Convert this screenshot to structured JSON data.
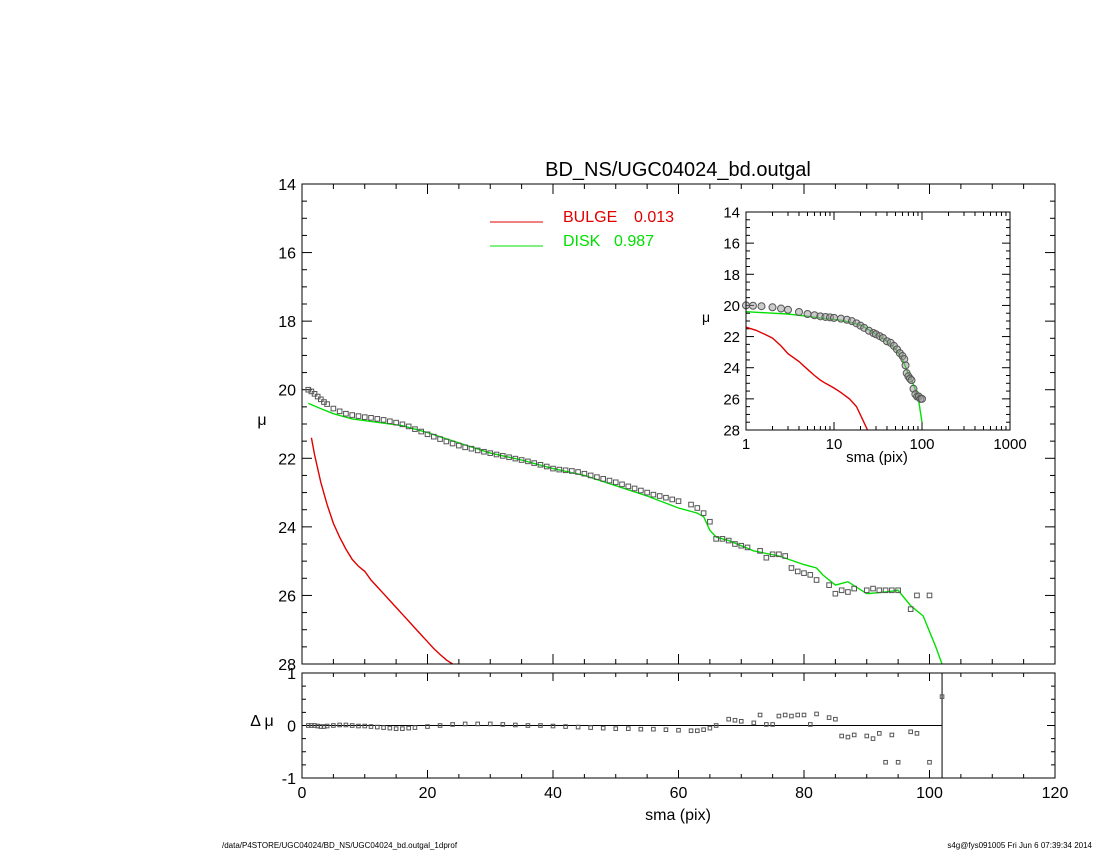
{
  "page": {
    "footer_left": "/data/P4STORE/UGC04024/BD_NS/UGC04024_bd.outgal_1dprof",
    "footer_right": "s4g@fys091005  Fri Jun  6 07:39:34 2014"
  },
  "colors": {
    "bulge": "#e00000",
    "disk": "#00e000",
    "data": "#555555",
    "axis": "#000000"
  },
  "chart_data": [
    {
      "id": "main-profile",
      "type": "line",
      "title": "BD_NS/UGC04024_bd.outgal",
      "xlabel": "",
      "ylabel": "μ",
      "xlim": [
        0,
        120
      ],
      "ylim": [
        28,
        14
      ],
      "y_reversed": true,
      "xticks": [
        0,
        20,
        40,
        60,
        80,
        100,
        120
      ],
      "yticks": [
        14,
        16,
        18,
        20,
        22,
        24,
        26,
        28
      ],
      "legend": {
        "placement": "top-center",
        "entries": [
          {
            "label": "BULGE",
            "value": "0.013",
            "color": "#e00000"
          },
          {
            "label": "DISK",
            "value": "0.987",
            "color": "#00e000"
          }
        ]
      },
      "series": [
        {
          "name": "BULGE",
          "color": "#e00000",
          "kind": "line",
          "x": [
            1.5,
            2,
            3,
            4,
            5,
            6,
            7,
            8,
            9,
            10,
            11,
            12,
            13,
            14,
            15,
            16,
            17,
            18,
            19,
            20,
            21,
            22,
            23,
            24
          ],
          "y": [
            21.4,
            21.9,
            22.7,
            23.35,
            23.9,
            24.3,
            24.65,
            24.95,
            25.15,
            25.3,
            25.55,
            25.75,
            25.95,
            26.15,
            26.35,
            26.55,
            26.75,
            26.95,
            27.15,
            27.35,
            27.55,
            27.72,
            27.88,
            28.0
          ]
        },
        {
          "name": "DISK",
          "color": "#00e000",
          "kind": "line",
          "x": [
            1,
            3,
            5,
            8,
            12,
            16,
            20,
            25,
            30,
            35,
            40,
            45,
            50,
            55,
            60,
            63,
            64,
            65,
            66,
            68,
            72,
            76,
            80,
            82,
            83,
            85,
            87,
            90,
            93,
            95,
            97,
            99,
            101,
            102
          ],
          "y": [
            20.4,
            20.55,
            20.7,
            20.85,
            20.95,
            21.05,
            21.25,
            21.55,
            21.85,
            22.05,
            22.3,
            22.5,
            22.8,
            23.1,
            23.45,
            23.6,
            23.7,
            24.1,
            24.3,
            24.4,
            24.7,
            24.85,
            25.1,
            25.2,
            25.4,
            25.7,
            25.6,
            25.95,
            25.9,
            25.85,
            26.3,
            26.6,
            27.5,
            28.0
          ]
        },
        {
          "name": "data",
          "color": "#555555",
          "kind": "markers",
          "x": [
            1,
            1.5,
            2,
            2.5,
            3,
            3.5,
            4,
            5,
            6,
            7,
            8,
            9,
            10,
            11,
            12,
            13,
            14,
            15,
            16,
            17,
            18,
            19,
            20,
            21,
            22,
            23,
            24,
            25,
            26,
            27,
            28,
            29,
            30,
            31,
            32,
            33,
            34,
            35,
            36,
            37,
            38,
            39,
            40,
            41,
            42,
            43,
            44,
            45,
            46,
            47,
            48,
            49,
            50,
            51,
            52,
            53,
            54,
            55,
            56,
            57,
            58,
            59,
            60,
            62,
            63,
            64,
            65,
            66,
            67,
            68,
            69,
            70,
            71,
            73,
            74,
            75,
            76,
            77,
            78,
            79,
            80,
            81,
            82,
            84,
            85,
            86,
            87,
            88,
            90,
            91,
            92,
            93,
            94,
            95,
            97,
            98,
            100
          ],
          "y": [
            20.0,
            20.05,
            20.12,
            20.2,
            20.28,
            20.36,
            20.42,
            20.55,
            20.63,
            20.7,
            20.74,
            20.77,
            20.8,
            20.82,
            20.85,
            20.88,
            20.92,
            20.96,
            21.01,
            21.07,
            21.15,
            21.22,
            21.3,
            21.37,
            21.44,
            21.51,
            21.57,
            21.63,
            21.68,
            21.72,
            21.77,
            21.81,
            21.85,
            21.89,
            21.93,
            21.97,
            22.01,
            22.05,
            22.09,
            22.14,
            22.19,
            22.24,
            22.3,
            22.33,
            22.35,
            22.37,
            22.4,
            22.45,
            22.5,
            22.55,
            22.6,
            22.65,
            22.7,
            22.76,
            22.82,
            22.88,
            22.94,
            23.0,
            23.06,
            23.1,
            23.15,
            23.2,
            23.25,
            23.35,
            23.45,
            23.6,
            23.85,
            24.35,
            24.35,
            24.4,
            24.5,
            24.55,
            24.6,
            24.7,
            24.9,
            24.8,
            24.8,
            24.85,
            25.2,
            25.3,
            25.35,
            25.4,
            25.55,
            25.7,
            25.95,
            25.85,
            25.9,
            25.8,
            25.85,
            25.8,
            25.85,
            25.85,
            25.85,
            25.85,
            26.4,
            26.0,
            26.0
          ]
        }
      ]
    },
    {
      "id": "inset-log-profile",
      "type": "line",
      "title": "",
      "xlabel": "sma (pix)",
      "ylabel": "μ",
      "xscale": "log",
      "xlim": [
        1,
        1000
      ],
      "ylim": [
        28,
        14
      ],
      "y_reversed": true,
      "xticks": [
        1,
        10,
        100,
        1000
      ],
      "yticks": [
        14,
        16,
        18,
        20,
        22,
        24,
        26,
        28
      ],
      "series": [
        {
          "name": "BULGE",
          "color": "#e00000",
          "kind": "line",
          "x": [
            1,
            1.3,
            1.7,
            2,
            2.5,
            3,
            4,
            5,
            6,
            7,
            8,
            10,
            12,
            15,
            18,
            21,
            24
          ],
          "y": [
            21.4,
            21.6,
            21.9,
            22.1,
            22.6,
            23.1,
            23.6,
            24.1,
            24.5,
            24.8,
            25.0,
            25.3,
            25.6,
            26.0,
            26.5,
            27.3,
            28.0
          ]
        },
        {
          "name": "DISK",
          "color": "#00e000",
          "kind": "line",
          "x": [
            1,
            2,
            3,
            5,
            8,
            12,
            20,
            30,
            40,
            50,
            60,
            70,
            80,
            90,
            100
          ],
          "y": [
            20.4,
            20.5,
            20.55,
            20.7,
            20.85,
            20.95,
            21.25,
            21.85,
            22.3,
            22.8,
            23.45,
            24.4,
            25.1,
            25.85,
            27.5
          ]
        },
        {
          "name": "data",
          "color": "#555555",
          "kind": "markers",
          "x": [
            1,
            1.2,
            1.5,
            2,
            2.5,
            3,
            4,
            5,
            6,
            7,
            8,
            9,
            10,
            12,
            14,
            16,
            18,
            20,
            22,
            25,
            28,
            30,
            33,
            36,
            40,
            44,
            48,
            52,
            56,
            60,
            63,
            65,
            67,
            70,
            73,
            76,
            80,
            84,
            88,
            92,
            96,
            100
          ],
          "y": [
            20.0,
            20.02,
            20.05,
            20.12,
            20.2,
            20.28,
            20.42,
            20.55,
            20.63,
            20.7,
            20.74,
            20.77,
            20.8,
            20.85,
            20.92,
            21.01,
            21.15,
            21.3,
            21.44,
            21.63,
            21.77,
            21.85,
            21.97,
            22.09,
            22.3,
            22.4,
            22.6,
            22.82,
            23.06,
            23.25,
            23.45,
            23.85,
            24.35,
            24.55,
            24.7,
            24.8,
            25.35,
            25.7,
            25.85,
            25.85,
            26.0,
            26.0
          ]
        }
      ]
    },
    {
      "id": "residuals",
      "type": "scatter",
      "title": "",
      "xlabel": "sma (pix)",
      "ylabel": "Δ μ",
      "xlim": [
        0,
        120
      ],
      "ylim": [
        -1,
        1
      ],
      "xticks": [
        0,
        20,
        40,
        60,
        80,
        100,
        120
      ],
      "yticks": [
        -1,
        0,
        1
      ],
      "zero_line": true,
      "cutoff_x": 102,
      "series": [
        {
          "name": "residual",
          "color": "#555555",
          "kind": "markers",
          "x": [
            1,
            1.5,
            2,
            2.5,
            3,
            3.5,
            4,
            5,
            6,
            7,
            8,
            9,
            10,
            11,
            12,
            13,
            14,
            15,
            16,
            17,
            18,
            20,
            22,
            24,
            26,
            28,
            30,
            32,
            34,
            36,
            38,
            40,
            42,
            44,
            46,
            48,
            50,
            52,
            54,
            56,
            58,
            60,
            62,
            63,
            64,
            65,
            66,
            68,
            69,
            70,
            72,
            73,
            74,
            75,
            76,
            77,
            78,
            79,
            80,
            81,
            82,
            84,
            85,
            86,
            87,
            88,
            90,
            91,
            92,
            93,
            94,
            95,
            97,
            98,
            100,
            102
          ],
          "y": [
            0.0,
            0.0,
            0.0,
            -0.01,
            -0.02,
            -0.02,
            -0.01,
            0.0,
            0.01,
            0.01,
            0.0,
            -0.01,
            -0.01,
            -0.02,
            -0.03,
            -0.04,
            -0.05,
            -0.06,
            -0.06,
            -0.05,
            -0.04,
            -0.02,
            0.0,
            0.02,
            0.03,
            0.03,
            0.03,
            0.02,
            0.01,
            0.0,
            0.0,
            -0.01,
            -0.02,
            -0.03,
            -0.04,
            -0.05,
            -0.06,
            -0.06,
            -0.07,
            -0.07,
            -0.08,
            -0.09,
            -0.1,
            -0.1,
            -0.08,
            -0.05,
            0.0,
            0.12,
            0.1,
            0.08,
            0.05,
            0.2,
            0.02,
            0.02,
            0.18,
            0.2,
            0.18,
            0.2,
            0.2,
            0.02,
            0.22,
            0.15,
            0.12,
            -0.2,
            -0.22,
            -0.18,
            -0.2,
            -0.25,
            -0.15,
            -0.7,
            -0.18,
            -0.7,
            -0.12,
            -0.15,
            -0.7,
            0.55
          ]
        }
      ]
    }
  ]
}
